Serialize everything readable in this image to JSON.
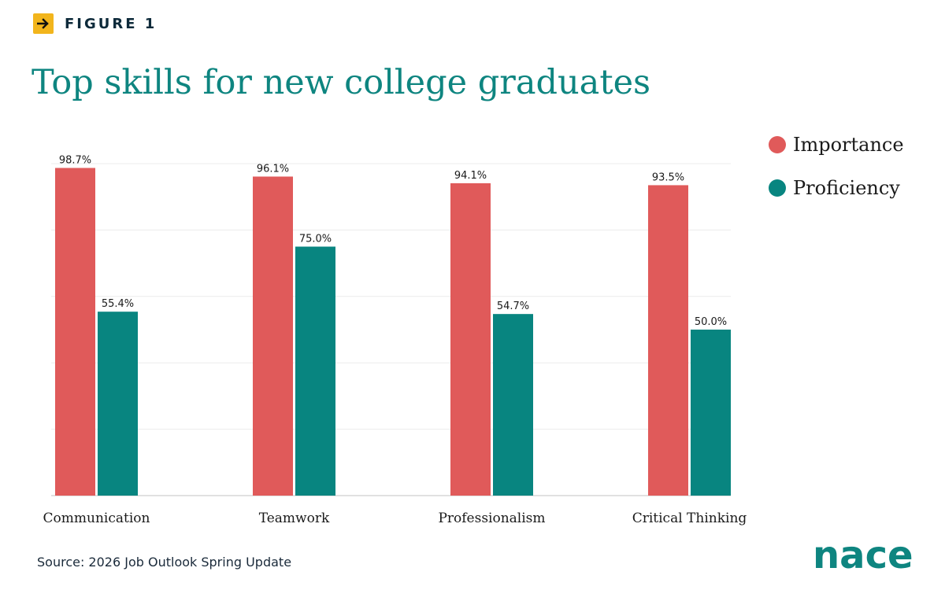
{
  "figure_label": "FIGURE 1",
  "title": "Top skills for new college graduates",
  "source": "Source: 2026 Job Outlook Spring Update",
  "logo_text": "nace",
  "colors": {
    "importance": "#e05a5a",
    "proficiency": "#088580",
    "title": "#0e8580",
    "accent": "#f2b51c"
  },
  "icons": {
    "figure_arrow": "arrow-right-icon"
  },
  "chart_data": {
    "type": "bar",
    "title": "Top skills for new college graduates",
    "xlabel": "",
    "ylabel": "",
    "categories": [
      "Communication",
      "Teamwork",
      "Professionalism",
      "Critical Thinking"
    ],
    "series": [
      {
        "name": "Importance",
        "values": [
          98.7,
          96.1,
          94.1,
          93.5
        ],
        "labels": [
          "98.7%",
          "96.1%",
          "94.1%",
          "93.5%"
        ]
      },
      {
        "name": "Proficiency",
        "values": [
          55.4,
          75.0,
          54.7,
          50.0
        ],
        "labels": [
          "55.4%",
          "75.0%",
          "54.7%",
          "50.0%"
        ]
      }
    ],
    "ylim": [
      0,
      100
    ],
    "grid": true,
    "legend_position": "top-right"
  }
}
